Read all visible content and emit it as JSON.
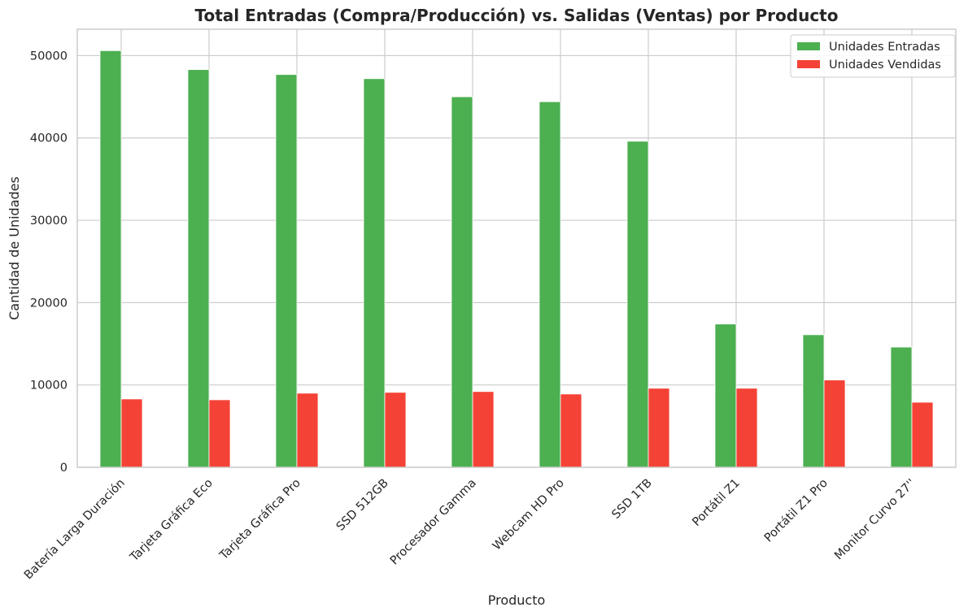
{
  "chart_data": {
    "type": "bar",
    "title": "Total Entradas (Compra/Producción) vs. Salidas (Ventas) por Producto",
    "xlabel": "Producto",
    "ylabel": "Cantidad de Unidades",
    "categories": [
      "Batería Larga Duración",
      "Tarjeta Gráfica Eco",
      "Tarjeta Gráfica Pro",
      "SSD 512GB",
      "Procesador Gamma",
      "Webcam HD Pro",
      "SSD 1TB",
      "Portátil Z1",
      "Portátil Z1 Pro",
      "Monitor Curvo 27''"
    ],
    "series": [
      {
        "name": "Unidades Entradas",
        "color": "#4caf50",
        "values": [
          50600,
          48300,
          47700,
          47200,
          45000,
          44400,
          39600,
          17400,
          16100,
          14600
        ]
      },
      {
        "name": "Unidades Vendidas",
        "color": "#f44336",
        "values": [
          8300,
          8200,
          9000,
          9100,
          9200,
          8900,
          9600,
          9600,
          10600,
          7900
        ]
      }
    ],
    "ylim": [
      0,
      53200
    ],
    "yticks": [
      0,
      10000,
      20000,
      30000,
      40000,
      50000
    ],
    "ytick_labels": [
      "0",
      "10000",
      "20000",
      "30000",
      "40000",
      "50000"
    ],
    "grid": true,
    "legend_position": "top-right"
  }
}
